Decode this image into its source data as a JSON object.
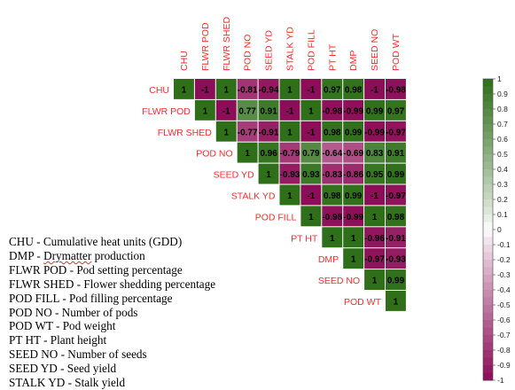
{
  "chart_data": {
    "type": "heatmap",
    "variables": [
      "CHU",
      "FLWR POD",
      "FLWR SHED",
      "POD NO",
      "SEED YD",
      "STALK YD",
      "POD FILL",
      "PT HT",
      "DMP",
      "SEED NO",
      "POD WT"
    ],
    "matrix_upper": [
      [
        1,
        -1,
        1,
        -0.81,
        -0.94,
        1,
        -1,
        0.97,
        0.98,
        -1,
        -0.98
      ],
      [
        1,
        -1,
        0.77,
        0.91,
        -1,
        1,
        -0.98,
        -0.99,
        0.99,
        0.97
      ],
      [
        1,
        -0.77,
        -0.91,
        1,
        -1,
        0.98,
        0.99,
        -0.99,
        -0.97
      ],
      [
        1,
        0.96,
        -0.79,
        0.79,
        -0.64,
        -0.69,
        0.83,
        0.91
      ],
      [
        1,
        -0.93,
        0.93,
        -0.83,
        -0.86,
        0.95,
        0.99
      ],
      [
        1,
        -1,
        0.98,
        0.99,
        -1,
        -0.97
      ],
      [
        1,
        -0.98,
        -0.99,
        1,
        0.98
      ],
      [
        1,
        1,
        -0.96,
        -0.91
      ],
      [
        1,
        -0.97,
        -0.93
      ],
      [
        1,
        0.99
      ],
      [
        1
      ]
    ],
    "colorbar_ticks": [
      "1",
      "0.9",
      "0.8",
      "0.7",
      "0.6",
      "0.5",
      "0.4",
      "0.3",
      "0.2",
      "0.1",
      "0",
      "-0.1",
      "-0.2",
      "-0.3",
      "-0.4",
      "-0.5",
      "-0.6",
      "-0.7",
      "-0.8",
      "-0.9",
      "-1"
    ],
    "colorbar_range": [
      -1,
      1
    ],
    "colors": {
      "positive": "#2f6f1a",
      "negative": "#8c0e58",
      "neutral": "#ffffff",
      "label": "#ff2a2a"
    },
    "title": "",
    "xlabel": "",
    "ylabel": ""
  },
  "legend_items": [
    "CHU - Cumulative heat units (GDD)",
    "DMP - Drymatter production",
    "FLWR POD - Pod setting percentage",
    "FLWR SHED - Flower shedding percentage",
    "POD FILL - Pod filling percentage",
    "POD NO - Number of pods",
    "POD WT - Pod weight",
    "PT HT - Plant height",
    "SEED NO - Number of seeds",
    "SEED YD - Seed yield",
    "STALK YD - Stalk yield"
  ]
}
